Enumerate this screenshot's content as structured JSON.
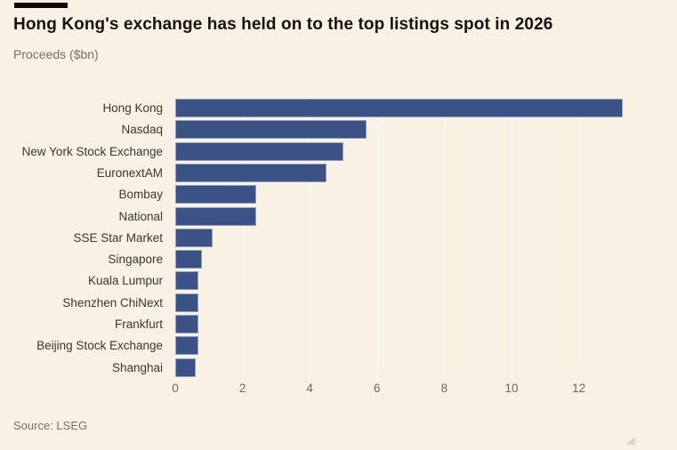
{
  "chart_data": {
    "type": "bar",
    "orientation": "horizontal",
    "title": "Hong Kong's exchange has held on to the top listings spot in 2026",
    "subtitle": "Proceeds ($bn)",
    "source": "Source: LSEG",
    "categories": [
      "Hong Kong",
      "Nasdaq",
      "New York Stock Exchange",
      "EuronextAM",
      "Bombay",
      "National",
      "SSE Star Market",
      "Singapore",
      "Kuala Lumpur",
      "Shenzhen ChiNext",
      "Frankfurt",
      "Beijing Stock Exchange",
      "Shanghai"
    ],
    "values": [
      13.3,
      5.7,
      5.0,
      4.5,
      2.4,
      2.4,
      1.1,
      0.8,
      0.7,
      0.7,
      0.7,
      0.7,
      0.6
    ],
    "x_ticks": [
      0,
      2,
      4,
      6,
      8,
      10,
      12
    ],
    "xlim": [
      0,
      14.4
    ],
    "xlabel": "",
    "ylabel": "",
    "grid": "vertical",
    "legend": "none",
    "colors": {
      "bar": "#3B5286",
      "background": "#FAF1E5",
      "gridline": "#FFFFFF",
      "title_text": "#16130f",
      "muted_text": "#776f63"
    }
  }
}
